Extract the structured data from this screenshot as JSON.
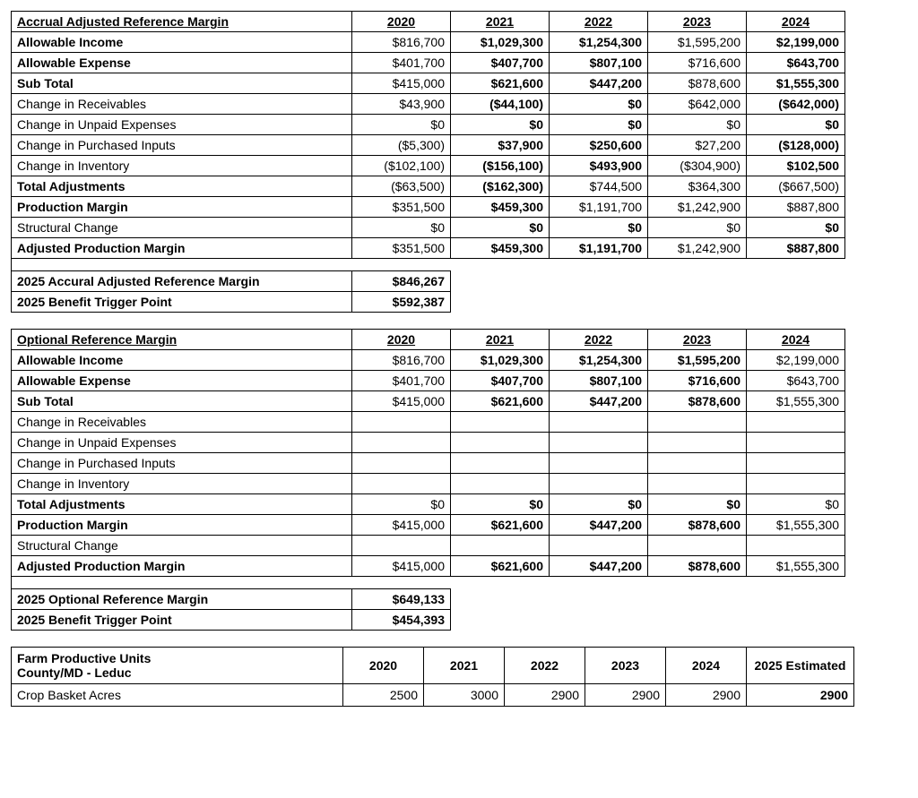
{
  "colors": {
    "border": "#000000",
    "background": "#ffffff",
    "text": "#000000"
  },
  "years": [
    "2020",
    "2021",
    "2022",
    "2023",
    "2024"
  ],
  "accrual": {
    "title": "Accrual Adjusted Reference Margin",
    "row_labels": [
      "Allowable Income",
      "Allowable Expense",
      "Sub Total",
      "Change in Receivables",
      "Change in Unpaid Expenses",
      "Change in Purchased Inputs",
      "Change in Inventory",
      "Total Adjustments",
      "Production Margin",
      "Structural Change",
      "Adjusted Production Margin"
    ],
    "bold_rows": [
      true,
      true,
      true,
      false,
      false,
      false,
      false,
      true,
      true,
      false,
      true
    ],
    "data": [
      [
        "$816,700",
        "$1,029,300",
        "$1,254,300",
        "$1,595,200",
        "$2,199,000"
      ],
      [
        "$401,700",
        "$407,700",
        "$807,100",
        "$716,600",
        "$643,700"
      ],
      [
        "$415,000",
        "$621,600",
        "$447,200",
        "$878,600",
        "$1,555,300"
      ],
      [
        "$43,900",
        "($44,100)",
        "$0",
        "$642,000",
        "($642,000)"
      ],
      [
        "$0",
        "$0",
        "$0",
        "$0",
        "$0"
      ],
      [
        "($5,300)",
        "$37,900",
        "$250,600",
        "$27,200",
        "($128,000)"
      ],
      [
        "($102,100)",
        "($156,100)",
        "$493,900",
        "($304,900)",
        "$102,500"
      ],
      [
        "($63,500)",
        "($162,300)",
        "$744,500",
        "$364,300",
        "($667,500)"
      ],
      [
        "$351,500",
        "$459,300",
        "$1,191,700",
        "$1,242,900",
        "$887,800"
      ],
      [
        "$0",
        "$0",
        "$0",
        "$0",
        "$0"
      ],
      [
        "$351,500",
        "$459,300",
        "$1,191,700",
        "$1,242,900",
        "$887,800"
      ]
    ],
    "bold_cells": [
      [
        false,
        true,
        true,
        false,
        true
      ],
      [
        false,
        true,
        true,
        false,
        true
      ],
      [
        false,
        true,
        true,
        false,
        true
      ],
      [
        false,
        true,
        true,
        false,
        true
      ],
      [
        false,
        true,
        true,
        false,
        true
      ],
      [
        false,
        true,
        true,
        false,
        true
      ],
      [
        false,
        true,
        true,
        false,
        true
      ],
      [
        false,
        true,
        false,
        false,
        false
      ],
      [
        false,
        true,
        false,
        false,
        false
      ],
      [
        false,
        true,
        true,
        false,
        true
      ],
      [
        false,
        true,
        true,
        false,
        true
      ]
    ],
    "summary": [
      {
        "label": "2025 Accural Adjusted Reference Margin",
        "value": "$846,267"
      },
      {
        "label": "2025 Benefit Trigger Point",
        "value": "$592,387"
      }
    ]
  },
  "optional": {
    "title": "Optional Reference Margin",
    "row_labels": [
      "Allowable Income",
      "Allowable Expense",
      "Sub Total",
      "Change in Receivables",
      "Change in Unpaid Expenses",
      "Change in Purchased Inputs",
      "Change in Inventory",
      "Total Adjustments",
      "Production Margin",
      "Structural Change",
      "Adjusted Production Margin"
    ],
    "bold_rows": [
      true,
      true,
      true,
      false,
      false,
      false,
      false,
      true,
      true,
      false,
      true
    ],
    "data": [
      [
        "$816,700",
        "$1,029,300",
        "$1,254,300",
        "$1,595,200",
        "$2,199,000"
      ],
      [
        "$401,700",
        "$407,700",
        "$807,100",
        "$716,600",
        "$643,700"
      ],
      [
        "$415,000",
        "$621,600",
        "$447,200",
        "$878,600",
        "$1,555,300"
      ],
      [
        "",
        "",
        "",
        "",
        ""
      ],
      [
        "",
        "",
        "",
        "",
        ""
      ],
      [
        "",
        "",
        "",
        "",
        ""
      ],
      [
        "",
        "",
        "",
        "",
        ""
      ],
      [
        "$0",
        "$0",
        "$0",
        "$0",
        "$0"
      ],
      [
        "$415,000",
        "$621,600",
        "$447,200",
        "$878,600",
        "$1,555,300"
      ],
      [
        "",
        "",
        "",
        "",
        ""
      ],
      [
        "$415,000",
        "$621,600",
        "$447,200",
        "$878,600",
        "$1,555,300"
      ]
    ],
    "bold_cells": [
      [
        false,
        true,
        true,
        true,
        false
      ],
      [
        false,
        true,
        true,
        true,
        false
      ],
      [
        false,
        true,
        true,
        true,
        false
      ],
      [
        false,
        false,
        false,
        false,
        false
      ],
      [
        false,
        false,
        false,
        false,
        false
      ],
      [
        false,
        false,
        false,
        false,
        false
      ],
      [
        false,
        false,
        false,
        false,
        false
      ],
      [
        false,
        true,
        true,
        true,
        false
      ],
      [
        false,
        true,
        true,
        true,
        false
      ],
      [
        false,
        false,
        false,
        false,
        false
      ],
      [
        false,
        true,
        true,
        true,
        false
      ]
    ],
    "summary": [
      {
        "label": "2025 Optional Reference Margin",
        "value": "$649,133"
      },
      {
        "label": "2025 Benefit Trigger Point",
        "value": "$454,393"
      }
    ]
  },
  "fpu": {
    "header_line1": "Farm Productive Units",
    "header_line2": "County/MD - Leduc",
    "years": [
      "2020",
      "2021",
      "2022",
      "2023",
      "2024",
      "2025 Estimated"
    ],
    "row_label": "Crop Basket Acres",
    "row_values": [
      "2500",
      "3000",
      "2900",
      "2900",
      "2900",
      "2900"
    ],
    "bold_values": [
      false,
      false,
      false,
      false,
      false,
      true
    ]
  }
}
